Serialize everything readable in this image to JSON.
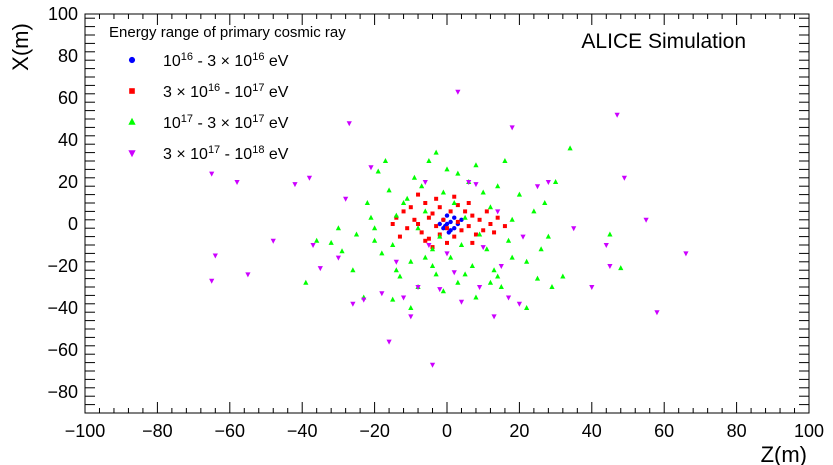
{
  "chart_data": {
    "type": "scatter",
    "title": "",
    "annotation": "ALICE Simulation",
    "xlabel": "Z(m)",
    "ylabel": "X(m)",
    "xlim": [
      -100,
      100
    ],
    "ylim": [
      -90,
      100
    ],
    "xticks": [
      -100,
      -80,
      -60,
      -40,
      -20,
      0,
      20,
      40,
      60,
      80,
      100
    ],
    "yticks": [
      -80,
      -60,
      -40,
      -20,
      0,
      20,
      40,
      60,
      80,
      100
    ],
    "grid": false,
    "legend": {
      "title": "Energy range of primary cosmic ray",
      "placement": "top-left"
    },
    "series": [
      {
        "name": "10^16 - 3 × 10^16 eV",
        "label_parts": {
          "m1": "10",
          "e1": "16",
          "sep": " - 3 × ",
          "m2": "10",
          "e2": "16",
          "unit": " eV"
        },
        "marker": "circle",
        "color": "#0000ff",
        "points": [
          [
            -1,
            2
          ],
          [
            0,
            4
          ],
          [
            1,
            1
          ],
          [
            2,
            -2
          ],
          [
            -2,
            0
          ],
          [
            1,
            -3
          ],
          [
            3,
            0
          ],
          [
            0,
            0
          ],
          [
            -0.5,
            -1
          ],
          [
            2,
            3
          ],
          [
            -1,
            -2
          ],
          [
            0.5,
            -4
          ],
          [
            4,
            2
          ]
        ]
      },
      {
        "name": "3 × 10^16 - 10^17 eV",
        "label_parts": {
          "m1": "3 × 10",
          "e1": "16",
          "sep": " - ",
          "m2": "10",
          "e2": "17",
          "unit": " eV"
        },
        "marker": "square",
        "color": "#ff0000",
        "points": [
          [
            -14,
            3
          ],
          [
            -12,
            6
          ],
          [
            -10,
            8
          ],
          [
            -9,
            2
          ],
          [
            -8,
            0
          ],
          [
            -7,
            -4
          ],
          [
            -6,
            10
          ],
          [
            -5,
            3
          ],
          [
            -5,
            -7
          ],
          [
            -4,
            5
          ],
          [
            -3,
            -1
          ],
          [
            -2,
            8
          ],
          [
            -2,
            -5
          ],
          [
            -1,
            2
          ],
          [
            0,
            -2
          ],
          [
            1,
            6
          ],
          [
            2,
            -6
          ],
          [
            3,
            1
          ],
          [
            4,
            -3
          ],
          [
            5,
            6
          ],
          [
            6,
            -1
          ],
          [
            7,
            4
          ],
          [
            8,
            -5
          ],
          [
            9,
            2
          ],
          [
            10,
            -3
          ],
          [
            12,
            0
          ],
          [
            13,
            -4
          ],
          [
            14,
            3
          ],
          [
            -11,
            -2
          ],
          [
            -6,
            -8
          ],
          [
            3,
            9
          ],
          [
            -3,
            12
          ],
          [
            6,
            10
          ],
          [
            -15,
            0
          ],
          [
            16,
            -1
          ],
          [
            -8,
            14
          ],
          [
            0,
            -9
          ],
          [
            7,
            -9
          ],
          [
            -13,
            -6
          ],
          [
            11,
            6
          ],
          [
            2,
            13
          ],
          [
            -4,
            -11
          ]
        ]
      },
      {
        "name": "10^17 - 3 × 10^17 eV",
        "label_parts": {
          "m1": "10",
          "e1": "17",
          "sep": " - 3 × ",
          "m2": "10",
          "e2": "17",
          "unit": " eV"
        },
        "marker": "triangle-up",
        "color": "#00ff00",
        "points": [
          [
            -36,
            -8
          ],
          [
            -32,
            -9
          ],
          [
            -29,
            -13
          ],
          [
            -25,
            -5
          ],
          [
            -22,
            10
          ],
          [
            -20,
            -8
          ],
          [
            -19,
            25
          ],
          [
            -17,
            30
          ],
          [
            -16,
            16
          ],
          [
            -15,
            -10
          ],
          [
            -14,
            4
          ],
          [
            -13,
            -25
          ],
          [
            -12,
            10
          ],
          [
            -11,
            12
          ],
          [
            -10,
            -18
          ],
          [
            -9,
            22
          ],
          [
            -8,
            -2
          ],
          [
            -7,
            18
          ],
          [
            -6,
            6
          ],
          [
            -5,
            30
          ],
          [
            -4,
            -12
          ],
          [
            -3,
            34
          ],
          [
            -2,
            -6
          ],
          [
            -1,
            15
          ],
          [
            0,
            26
          ],
          [
            1,
            -16
          ],
          [
            2,
            10
          ],
          [
            3,
            24
          ],
          [
            4,
            -10
          ],
          [
            5,
            3
          ],
          [
            6,
            20
          ],
          [
            7,
            -20
          ],
          [
            8,
            28
          ],
          [
            9,
            -5
          ],
          [
            10,
            15
          ],
          [
            11,
            -12
          ],
          [
            12,
            8
          ],
          [
            13,
            -22
          ],
          [
            14,
            18
          ],
          [
            15,
            -30
          ],
          [
            16,
            30
          ],
          [
            17,
            -8
          ],
          [
            18,
            2
          ],
          [
            20,
            14
          ],
          [
            22,
            -18
          ],
          [
            24,
            6
          ],
          [
            25,
            -26
          ],
          [
            27,
            10
          ],
          [
            28,
            -6
          ],
          [
            30,
            20
          ],
          [
            34,
            36
          ],
          [
            -18,
            -14
          ],
          [
            -21,
            3
          ],
          [
            -8,
            -30
          ],
          [
            3,
            -28
          ],
          [
            -3,
            -24
          ],
          [
            -30,
            -2
          ],
          [
            -26,
            -22
          ],
          [
            -39,
            -28
          ],
          [
            -23,
            -35
          ],
          [
            -14,
            -22
          ],
          [
            -6,
            -16
          ],
          [
            12,
            -28
          ],
          [
            18,
            -16
          ],
          [
            -1,
            -32
          ],
          [
            45,
            -5
          ],
          [
            48,
            -21
          ],
          [
            29,
            -30
          ],
          [
            -10,
            -40
          ],
          [
            8,
            -35
          ],
          [
            -15,
            -36
          ],
          [
            22,
            -40
          ],
          [
            -20,
            -2
          ],
          [
            -4,
            -20
          ],
          [
            5,
            -24
          ],
          [
            14,
            -25
          ],
          [
            26,
            -12
          ],
          [
            32,
            -25
          ]
        ]
      },
      {
        "name": "3 × 10^17 - 10^18 eV",
        "label_parts": {
          "m1": "3 × 10",
          "e1": "17",
          "sep": " - ",
          "m2": "10",
          "e2": "18",
          "unit": " eV"
        },
        "marker": "triangle-down",
        "color": "#cc00ff",
        "points": [
          [
            -65,
            24
          ],
          [
            -64,
            -15
          ],
          [
            -65,
            -27
          ],
          [
            -58,
            20
          ],
          [
            -55,
            -24
          ],
          [
            -48,
            -8
          ],
          [
            -42,
            19
          ],
          [
            -38,
            22
          ],
          [
            -37,
            -10
          ],
          [
            -35,
            -21
          ],
          [
            -30,
            -16
          ],
          [
            -27,
            48
          ],
          [
            -26,
            -38
          ],
          [
            -23,
            -36
          ],
          [
            -21,
            27
          ],
          [
            -18,
            -33
          ],
          [
            -16,
            -56
          ],
          [
            -12,
            -35
          ],
          [
            -10,
            -44
          ],
          [
            -8,
            -30
          ],
          [
            -6,
            20
          ],
          [
            -4,
            -67
          ],
          [
            -2,
            -31
          ],
          [
            2,
            -23
          ],
          [
            3,
            63
          ],
          [
            4,
            -37
          ],
          [
            6,
            20
          ],
          [
            9,
            -30
          ],
          [
            13,
            -44
          ],
          [
            15,
            -20
          ],
          [
            17,
            -35
          ],
          [
            18,
            46
          ],
          [
            20,
            -38
          ],
          [
            25,
            18
          ],
          [
            28,
            20
          ],
          [
            35,
            -2
          ],
          [
            40,
            -30
          ],
          [
            44,
            -10
          ],
          [
            45,
            -20
          ],
          [
            47,
            52
          ],
          [
            49,
            22
          ],
          [
            55,
            2
          ],
          [
            58,
            -42
          ],
          [
            66,
            -14
          ],
          [
            -28,
            12
          ],
          [
            8,
            19
          ],
          [
            -14,
            -18
          ],
          [
            21,
            -6
          ],
          [
            10,
            -11
          ],
          [
            -5,
            -10
          ],
          [
            0,
            -14
          ],
          [
            14,
            6
          ]
        ]
      }
    ]
  }
}
